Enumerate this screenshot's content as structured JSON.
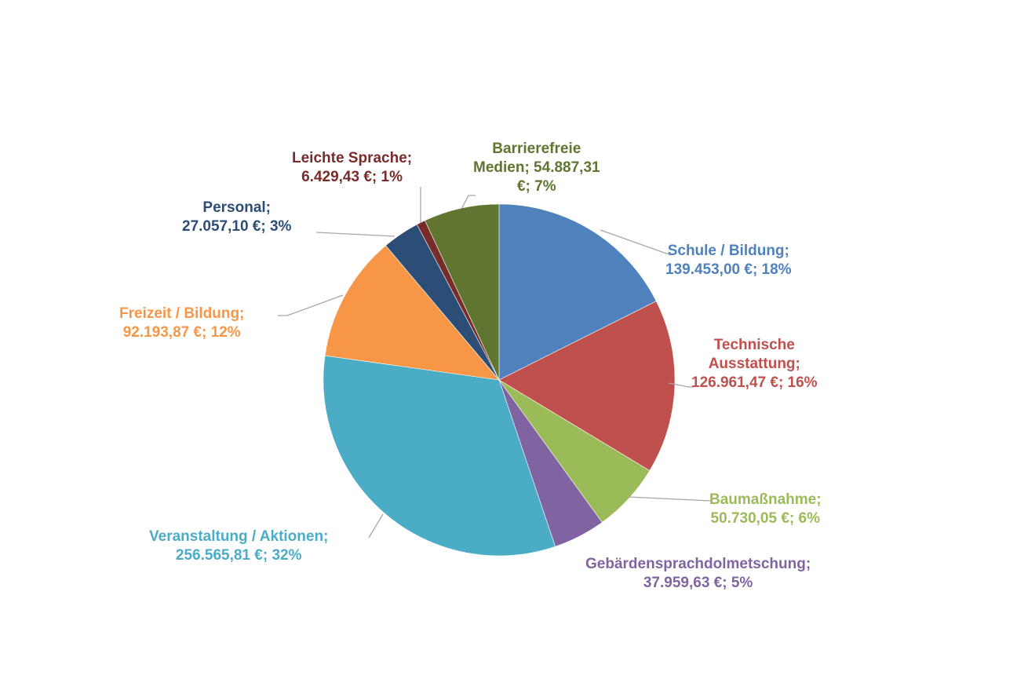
{
  "chart_data": {
    "type": "pie",
    "title": "",
    "start_angle_deg": 0,
    "direction": "clockwise",
    "currency": "€",
    "slices": [
      {
        "label": "Schule / Bildung",
        "value": 139453.0,
        "value_text": "139.453,00 €",
        "percent": 18,
        "color": "#4F81BD"
      },
      {
        "label": "Technische Ausstattung",
        "value": 126961.47,
        "value_text": "126.961,47 €",
        "percent": 16,
        "color": "#C0504D"
      },
      {
        "label": "Baumaßnahme",
        "value": 50730.05,
        "value_text": "50.730,05 €",
        "percent": 6,
        "color": "#9BBB59"
      },
      {
        "label": "Gebärdensprachdolmetschung",
        "value": 37959.63,
        "value_text": "37.959,63 €",
        "percent": 5,
        "color": "#8064A2"
      },
      {
        "label": "Veranstaltung / Aktionen",
        "value": 256565.81,
        "value_text": "256.565,81 €",
        "percent": 32,
        "color": "#4BACC6"
      },
      {
        "label": "Freizeit / Bildung",
        "value": 92193.87,
        "value_text": "92.193,87 €",
        "percent": 12,
        "color": "#F79646"
      },
      {
        "label": "Personal",
        "value": 27057.1,
        "value_text": "27.057,10 €",
        "percent": 3,
        "color": "#2C4D75"
      },
      {
        "label": "Leichte Sprache",
        "value": 6429.43,
        "value_text": "6.429,43 €",
        "percent": 1,
        "color": "#772C2A"
      },
      {
        "label": "Barrierefreie Medien",
        "value": 54887.31,
        "value_text": "54.887,31 €",
        "percent": 7,
        "color": "#5F7530"
      }
    ]
  },
  "labels": {
    "schule": {
      "line1": "Schule / Bildung;",
      "line2": "139.453,00 €; 18%",
      "color": "#4F81BD"
    },
    "technische": {
      "line1": "Technische",
      "line2": "Ausstattung;",
      "line3": "126.961,47 €; 16%",
      "color": "#C0504D"
    },
    "baumassnahme": {
      "line1": "Baumaßnahme;",
      "line2": "50.730,05 €; 6%",
      "color": "#9BBB59"
    },
    "gebaerden": {
      "line1": "Gebärdensprachdolmetschung;",
      "line2": "37.959,63 €; 5%",
      "color": "#8064A2"
    },
    "veranstaltung": {
      "line1": "Veranstaltung / Aktionen;",
      "line2": "256.565,81 €; 32%",
      "color": "#4BACC6"
    },
    "freizeit": {
      "line1": "Freizeit / Bildung;",
      "line2": "92.193,87 €; 12%",
      "color": "#F79646"
    },
    "personal": {
      "line1": "Personal;",
      "line2": "27.057,10 €; 3%",
      "color": "#2C4D75"
    },
    "leichte": {
      "line1": "Leichte Sprache;",
      "line2": "6.429,43 €; 1%",
      "color": "#772C2A"
    },
    "medien": {
      "line1": "Barrierefreie",
      "line2": "Medien; 54.887,31",
      "line3": "€; 7%",
      "color": "#5F7530"
    }
  }
}
